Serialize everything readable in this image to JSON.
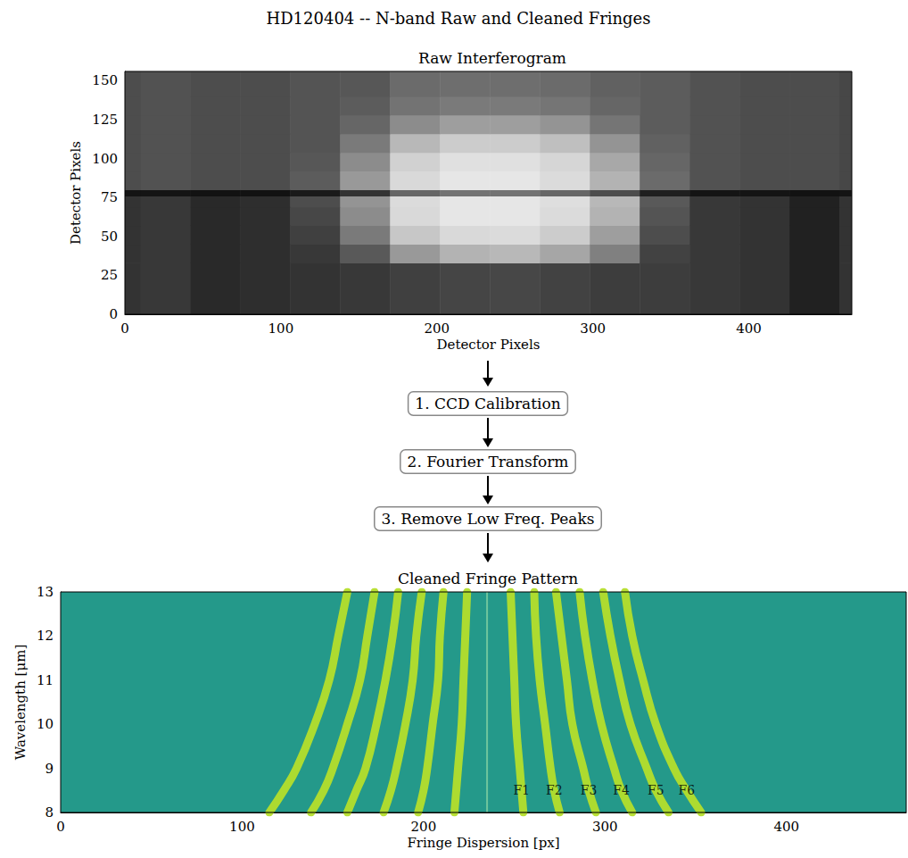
{
  "title": "HD120404 -- N-band Raw and Cleaned Fringes",
  "steps": [
    "1. CCD Calibration",
    "2. Fourier Transform",
    "3. Remove Low Freq. Peaks"
  ],
  "chart_data": [
    {
      "type": "heatmap",
      "title": "Raw Interferogram",
      "x_label": "Detector Pixels",
      "y_label": "Detector Pixels",
      "xlim": [
        0,
        466
      ],
      "ylim": [
        0,
        156
      ],
      "xticks": [
        0,
        100,
        200,
        300,
        400
      ],
      "yticks": [
        0,
        25,
        50,
        75,
        100,
        125,
        150
      ],
      "grid": false,
      "x_edges": [
        0,
        10,
        42,
        74,
        106,
        138,
        170,
        202,
        234,
        266,
        298,
        330,
        362,
        394,
        426,
        458,
        466
      ],
      "y_edges": [
        0,
        33,
        45,
        57,
        69,
        76,
        80,
        92,
        104,
        116,
        128,
        140,
        156
      ],
      "cells": [
        [
          0.2,
          0.22,
          0.16,
          0.18,
          0.2,
          0.22,
          0.25,
          0.27,
          0.28,
          0.26,
          0.24,
          0.24,
          0.22,
          0.2,
          0.13,
          0.2
        ],
        [
          0.2,
          0.22,
          0.16,
          0.18,
          0.22,
          0.35,
          0.6,
          0.7,
          0.72,
          0.65,
          0.5,
          0.26,
          0.22,
          0.2,
          0.13,
          0.2
        ],
        [
          0.2,
          0.22,
          0.16,
          0.18,
          0.25,
          0.48,
          0.78,
          0.85,
          0.86,
          0.8,
          0.62,
          0.3,
          0.22,
          0.2,
          0.13,
          0.2
        ],
        [
          0.2,
          0.22,
          0.16,
          0.18,
          0.28,
          0.55,
          0.85,
          0.9,
          0.9,
          0.86,
          0.7,
          0.33,
          0.22,
          0.2,
          0.13,
          0.2
        ],
        [
          0.2,
          0.22,
          0.16,
          0.18,
          0.3,
          0.58,
          0.86,
          0.9,
          0.9,
          0.87,
          0.72,
          0.35,
          0.22,
          0.2,
          0.13,
          0.2
        ],
        [
          0.08,
          0.08,
          0.07,
          0.07,
          0.1,
          0.2,
          0.4,
          0.45,
          0.45,
          0.4,
          0.3,
          0.12,
          0.08,
          0.08,
          0.07,
          0.08
        ],
        [
          0.3,
          0.32,
          0.3,
          0.3,
          0.36,
          0.6,
          0.85,
          0.9,
          0.9,
          0.86,
          0.7,
          0.42,
          0.32,
          0.3,
          0.3,
          0.28
        ],
        [
          0.3,
          0.32,
          0.3,
          0.3,
          0.34,
          0.55,
          0.82,
          0.88,
          0.88,
          0.84,
          0.66,
          0.4,
          0.32,
          0.3,
          0.3,
          0.28
        ],
        [
          0.3,
          0.32,
          0.3,
          0.3,
          0.33,
          0.48,
          0.72,
          0.8,
          0.8,
          0.75,
          0.58,
          0.38,
          0.32,
          0.3,
          0.3,
          0.28
        ],
        [
          0.3,
          0.32,
          0.3,
          0.3,
          0.33,
          0.4,
          0.55,
          0.62,
          0.62,
          0.58,
          0.46,
          0.36,
          0.32,
          0.3,
          0.3,
          0.28
        ],
        [
          0.3,
          0.32,
          0.3,
          0.3,
          0.33,
          0.36,
          0.45,
          0.48,
          0.48,
          0.46,
          0.4,
          0.36,
          0.32,
          0.3,
          0.3,
          0.28
        ],
        [
          0.3,
          0.32,
          0.3,
          0.3,
          0.33,
          0.34,
          0.42,
          0.43,
          0.43,
          0.42,
          0.38,
          0.36,
          0.32,
          0.3,
          0.3,
          0.28
        ]
      ]
    },
    {
      "type": "line",
      "title": "Cleaned Fringe Pattern",
      "x_label": "Fringe Dispersion [px]",
      "y_label": "Wavelength [μm]",
      "xlim": [
        0,
        466
      ],
      "ylim": [
        8,
        13
      ],
      "xticks": [
        0,
        100,
        200,
        300,
        400
      ],
      "yticks": [
        8,
        9,
        10,
        11,
        12,
        13
      ],
      "grid": false,
      "color": "#b5de2b",
      "y": [
        8,
        8.5,
        9,
        10,
        11,
        12,
        13
      ],
      "series": [
        {
          "x": [
            217,
            218,
            219,
            221,
            222,
            223,
            224
          ]
        },
        {
          "x": [
            197,
            200,
            202,
            205,
            208,
            209,
            211
          ]
        },
        {
          "x": [
            178,
            182,
            185,
            190,
            194,
            196,
            199
          ]
        },
        {
          "x": [
            158,
            163,
            168,
            174,
            179,
            183,
            186
          ]
        },
        {
          "x": [
            138,
            145,
            150,
            158,
            165,
            169,
            173
          ]
        },
        {
          "x": [
            115,
            123,
            130,
            140,
            148,
            153,
            158
          ]
        },
        {
          "x": [
            235,
            235,
            235,
            235,
            235,
            235,
            235
          ],
          "line_style": "thin"
        },
        {
          "name": "F1",
          "x": [
            255,
            254,
            253,
            251,
            250,
            249,
            248
          ]
        },
        {
          "name": "F2",
          "x": [
            275,
            272,
            270,
            267,
            264,
            262,
            261
          ]
        },
        {
          "name": "F3",
          "x": [
            295,
            291,
            288,
            282,
            279,
            276,
            273
          ]
        },
        {
          "name": "F4",
          "x": [
            315,
            309,
            305,
            298,
            293,
            289,
            286
          ]
        },
        {
          "name": "F5",
          "x": [
            335,
            328,
            323,
            314,
            308,
            303,
            299
          ]
        },
        {
          "name": "F6",
          "x": [
            353,
            345,
            338,
            328,
            321,
            315,
            311
          ]
        }
      ]
    }
  ]
}
